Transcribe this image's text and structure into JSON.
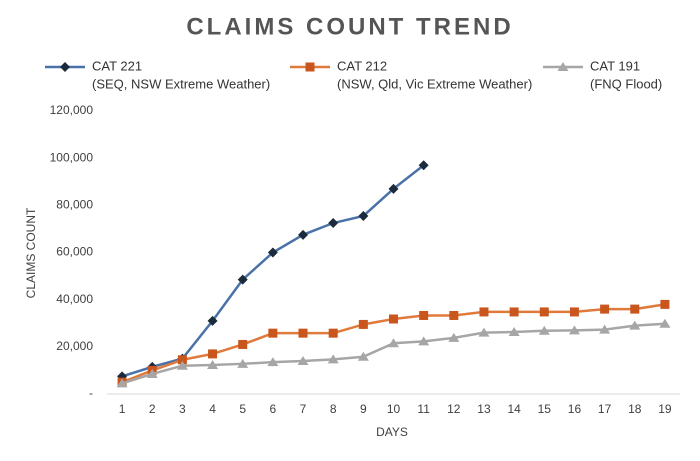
{
  "chart_data": {
    "type": "line",
    "title": "CLAIMS COUNT TREND",
    "x_label": "DAYS",
    "y_label": "CLAIMS COUNT",
    "categories": [
      1,
      2,
      3,
      4,
      5,
      6,
      7,
      8,
      9,
      10,
      11,
      12,
      13,
      14,
      15,
      16,
      17,
      18,
      19
    ],
    "series": [
      {
        "name": "CAT 221",
        "description": "(SEQ, NSW Extreme Weather)",
        "color": "#4a72a8",
        "marker": "diamond",
        "marker_color": "#1c2b3c",
        "values": [
          7500,
          11500,
          15000,
          31000,
          48500,
          60000,
          67500,
          72500,
          75500,
          87000,
          97000,
          null,
          null,
          null,
          null,
          null,
          null,
          null,
          null
        ]
      },
      {
        "name": "CAT 212",
        "description": "(NSW, Qld, Vic Extreme Weather)",
        "color": "#e07a3c",
        "marker": "square",
        "marker_color": "#c9561c",
        "values": [
          5000,
          10000,
          14500,
          17000,
          21000,
          25800,
          25800,
          25800,
          29500,
          31800,
          33300,
          33300,
          34800,
          34800,
          34800,
          34800,
          36000,
          36000,
          38000
        ]
      },
      {
        "name": "CAT 191",
        "description": "(FNQ Flood)",
        "color": "#a6a6a6",
        "marker": "triangle",
        "marker_color": "#a6a6a6",
        "values": [
          4500,
          8500,
          12000,
          12300,
          12800,
          13500,
          14000,
          14700,
          15800,
          21500,
          22300,
          23800,
          26000,
          26300,
          26800,
          27000,
          27300,
          29000,
          29800
        ]
      }
    ],
    "ylim": [
      0,
      120000
    ],
    "yticks": [
      {
        "value": 0,
        "label": "-"
      },
      {
        "value": 20000,
        "label": "20,000"
      },
      {
        "value": 40000,
        "label": "40,000"
      },
      {
        "value": 60000,
        "label": "60,000"
      },
      {
        "value": 80000,
        "label": "80,000"
      },
      {
        "value": 100000,
        "label": "100,000"
      },
      {
        "value": 120000,
        "label": "120,000"
      }
    ],
    "grid": false
  }
}
